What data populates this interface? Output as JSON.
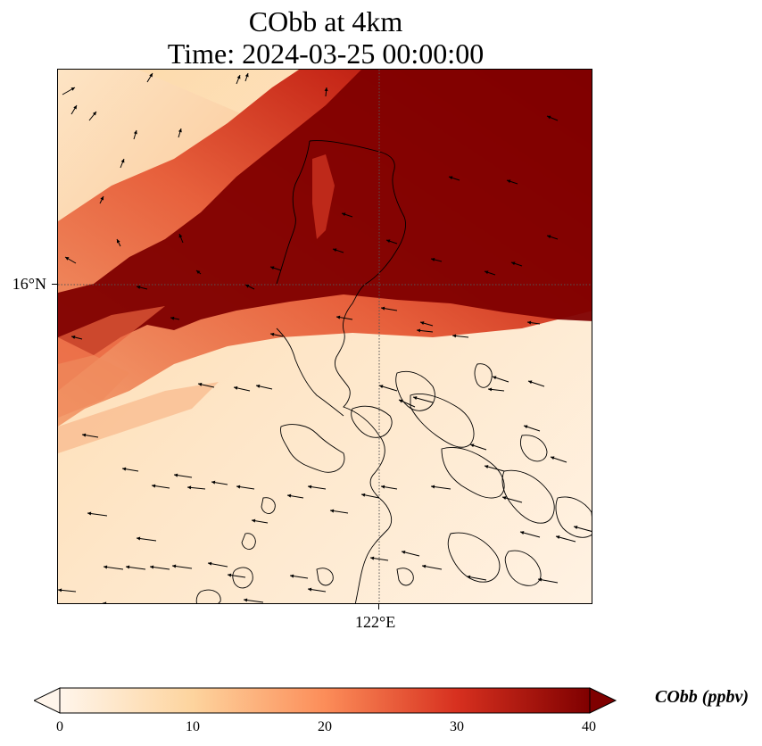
{
  "title": {
    "line1": "CObb at 4km",
    "line2": "Time: 2024-03-25 00:00:00"
  },
  "axes": {
    "lat_label": "16°N",
    "lon_label": "122°E"
  },
  "colorbar": {
    "label": "CObb (ppbv)",
    "ticks": [
      "0",
      "10",
      "20",
      "30",
      "40"
    ],
    "range": [
      0,
      40
    ],
    "extend": "both",
    "colors": [
      "#fff5eb",
      "#fdd49e",
      "#fc8d59",
      "#d7301f",
      "#7f0000"
    ]
  },
  "colors": {
    "coastline": "#000000",
    "gridline": "#555555",
    "wind_arrow": "#000000"
  }
}
